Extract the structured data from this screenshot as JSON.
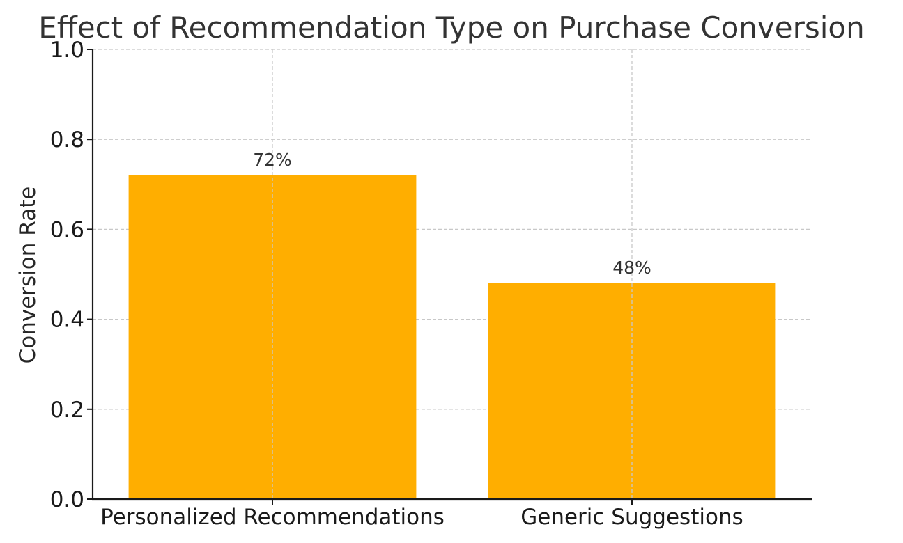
{
  "chart_data": {
    "type": "bar",
    "title": "Effect of Recommendation Type on Purchase Conversion",
    "xlabel": "",
    "ylabel": "Conversion Rate",
    "categories": [
      "Personalized Recommendations",
      "Generic Suggestions"
    ],
    "values": [
      0.72,
      0.48
    ],
    "data_labels": [
      "72%",
      "48%"
    ],
    "ylim": [
      0.0,
      1.0
    ],
    "yticks": [
      0.0,
      0.2,
      0.4,
      0.6,
      0.8,
      1.0
    ],
    "ytick_labels": [
      "0.0",
      "0.2",
      "0.4",
      "0.6",
      "0.8",
      "1.0"
    ],
    "grid": true,
    "bar_color": "#FFAE00"
  }
}
